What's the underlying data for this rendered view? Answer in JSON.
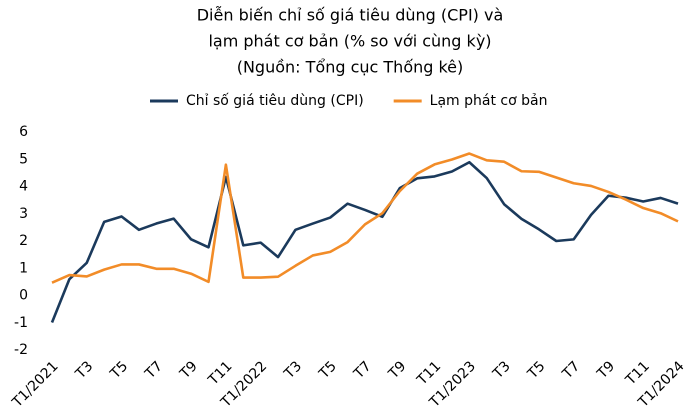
{
  "chart_data": {
    "type": "line",
    "title": [
      "Diễn biến chỉ số giá tiêu dùng (CPI) và",
      "lạm phát cơ bản (% so với cùng kỳ)"
    ],
    "subtitle": "(Nguồn: Tổng cục Thống kê)",
    "categories": [
      "T1/2021",
      null,
      "T3",
      null,
      "T5",
      null,
      "T7",
      null,
      "T9",
      null,
      "T11",
      null,
      "T1/2022",
      null,
      "T3",
      null,
      "T5",
      null,
      "T7",
      null,
      "T9",
      null,
      "T11",
      null,
      "T1/2023",
      null,
      "T3",
      null,
      "T5",
      null,
      "T7",
      null,
      "T9",
      null,
      "T11",
      null,
      "T1/2024"
    ],
    "series": [
      {
        "name": "Chỉ số giá tiêu dùng (CPI)",
        "color": "#1b3a5c",
        "values": [
          -0.99,
          0.6,
          1.2,
          2.7,
          2.9,
          2.41,
          2.64,
          2.82,
          2.06,
          1.77,
          4.35,
          1.84,
          1.94,
          1.41,
          2.41,
          2.64,
          2.86,
          3.37,
          3.14,
          2.89,
          3.94,
          4.3,
          4.37,
          4.55,
          4.89,
          4.31,
          3.35,
          2.81,
          2.43,
          2.0,
          2.06,
          2.96,
          3.66,
          3.59,
          3.45,
          3.58,
          3.37
        ]
      },
      {
        "name": "Lạm phát cơ bản",
        "color": "#f28c28",
        "values": [
          0.47,
          0.75,
          0.7,
          0.95,
          1.14,
          1.14,
          0.98,
          0.98,
          0.8,
          0.5,
          4.8,
          0.66,
          0.66,
          0.69,
          1.09,
          1.47,
          1.6,
          1.96,
          2.61,
          3.02,
          3.83,
          4.47,
          4.81,
          4.99,
          5.21,
          4.96,
          4.91,
          4.56,
          4.54,
          4.33,
          4.12,
          4.02,
          3.8,
          3.52,
          3.21,
          3.02,
          2.72
        ]
      }
    ],
    "ylim": [
      -2,
      6
    ],
    "yticks": [
      -2,
      -1,
      0,
      1,
      2,
      3,
      4,
      5,
      6
    ],
    "grid": false,
    "legend": "top"
  }
}
